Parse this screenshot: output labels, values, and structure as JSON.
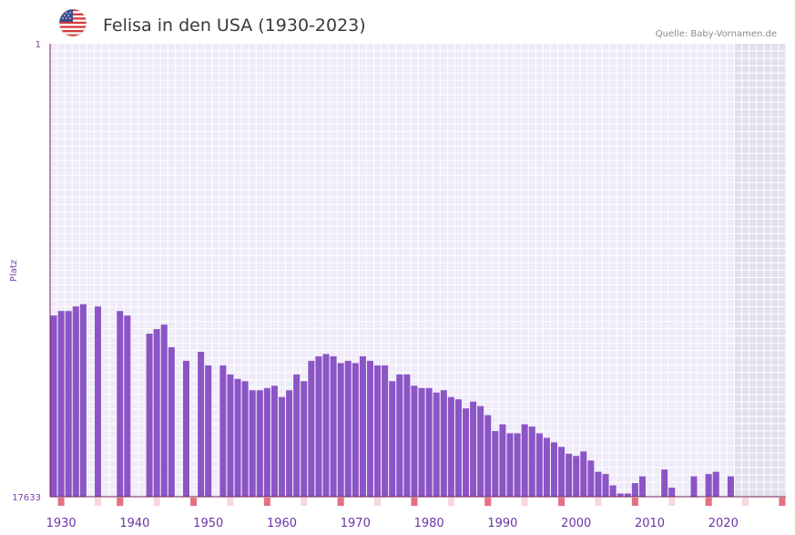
{
  "header": {
    "title": "Felisa in den USA (1930-2023)",
    "source": "Quelle: Baby-Vornamen.de",
    "flag_icon": "us-flag-icon"
  },
  "colors": {
    "bar": "#8b55c6",
    "plot_bg": "#efebf8",
    "grid": "#ffffff",
    "future_bg": "#e3dfec",
    "axis": "#7a2050",
    "marker_strong": "#e57180",
    "marker_light": "#f8d6dc",
    "tick_text": "#6a35a8"
  },
  "chart_data": {
    "type": "bar",
    "title": "Felisa in den USA (1930-2023)",
    "xlabel": "",
    "ylabel": "Platz",
    "y_top_label": "1",
    "y_bottom_label": "17633",
    "xlim": [
      1929,
      2029
    ],
    "future_start": 2022,
    "x_ticks": [
      1930,
      1940,
      1950,
      1960,
      1970,
      1980,
      1990,
      2000,
      2010,
      2020
    ],
    "value_note": "relative bar height, 0 = rank 17633 (baseline), 1 = rank 1 (top)",
    "x": [
      1929,
      1930,
      1931,
      1932,
      1933,
      1934,
      1935,
      1936,
      1937,
      1938,
      1939,
      1940,
      1941,
      1942,
      1943,
      1944,
      1945,
      1946,
      1947,
      1948,
      1949,
      1950,
      1951,
      1952,
      1953,
      1954,
      1955,
      1956,
      1957,
      1958,
      1959,
      1960,
      1961,
      1962,
      1963,
      1964,
      1965,
      1966,
      1967,
      1968,
      1969,
      1970,
      1971,
      1972,
      1973,
      1974,
      1975,
      1976,
      1977,
      1978,
      1979,
      1980,
      1981,
      1982,
      1983,
      1984,
      1985,
      1986,
      1987,
      1988,
      1989,
      1990,
      1991,
      1992,
      1993,
      1994,
      1995,
      1996,
      1997,
      1998,
      1999,
      2000,
      2001,
      2002,
      2003,
      2004,
      2005,
      2006,
      2007,
      2008,
      2009,
      2010,
      2011,
      2012,
      2013,
      2014,
      2015,
      2016,
      2017,
      2018,
      2019,
      2020,
      2021
    ],
    "values": [
      0.4,
      0.41,
      0.41,
      0.42,
      0.425,
      0,
      0.42,
      0,
      0,
      0.41,
      0.4,
      0,
      0,
      0.36,
      0.37,
      0.38,
      0.33,
      0,
      0.3,
      0,
      0.32,
      0.29,
      0,
      0.29,
      0.27,
      0.26,
      0.255,
      0.235,
      0.235,
      0.24,
      0.245,
      0.22,
      0.235,
      0.27,
      0.255,
      0.3,
      0.31,
      0.315,
      0.31,
      0.295,
      0.3,
      0.295,
      0.31,
      0.3,
      0.29,
      0.29,
      0.255,
      0.27,
      0.27,
      0.245,
      0.24,
      0.24,
      0.23,
      0.235,
      0.22,
      0.215,
      0.195,
      0.21,
      0.2,
      0.18,
      0.145,
      0.16,
      0.14,
      0.14,
      0.16,
      0.155,
      0.14,
      0.13,
      0.12,
      0.11,
      0.095,
      0.09,
      0.1,
      0.08,
      0.055,
      0.05,
      0.025,
      0.007,
      0.007,
      0.03,
      0.045,
      0,
      0,
      0.06,
      0.02,
      0,
      0,
      0.045,
      0,
      0.05,
      0.055,
      0,
      0.045
    ],
    "marker_strong_years": [
      1930,
      1938,
      1948,
      1958,
      1968,
      1978,
      1988,
      1998,
      2008,
      2018,
      2028
    ],
    "marker_light_years": [
      1935,
      1943,
      1953,
      1963,
      1973,
      1983,
      1993,
      2003,
      2013,
      2023
    ]
  }
}
